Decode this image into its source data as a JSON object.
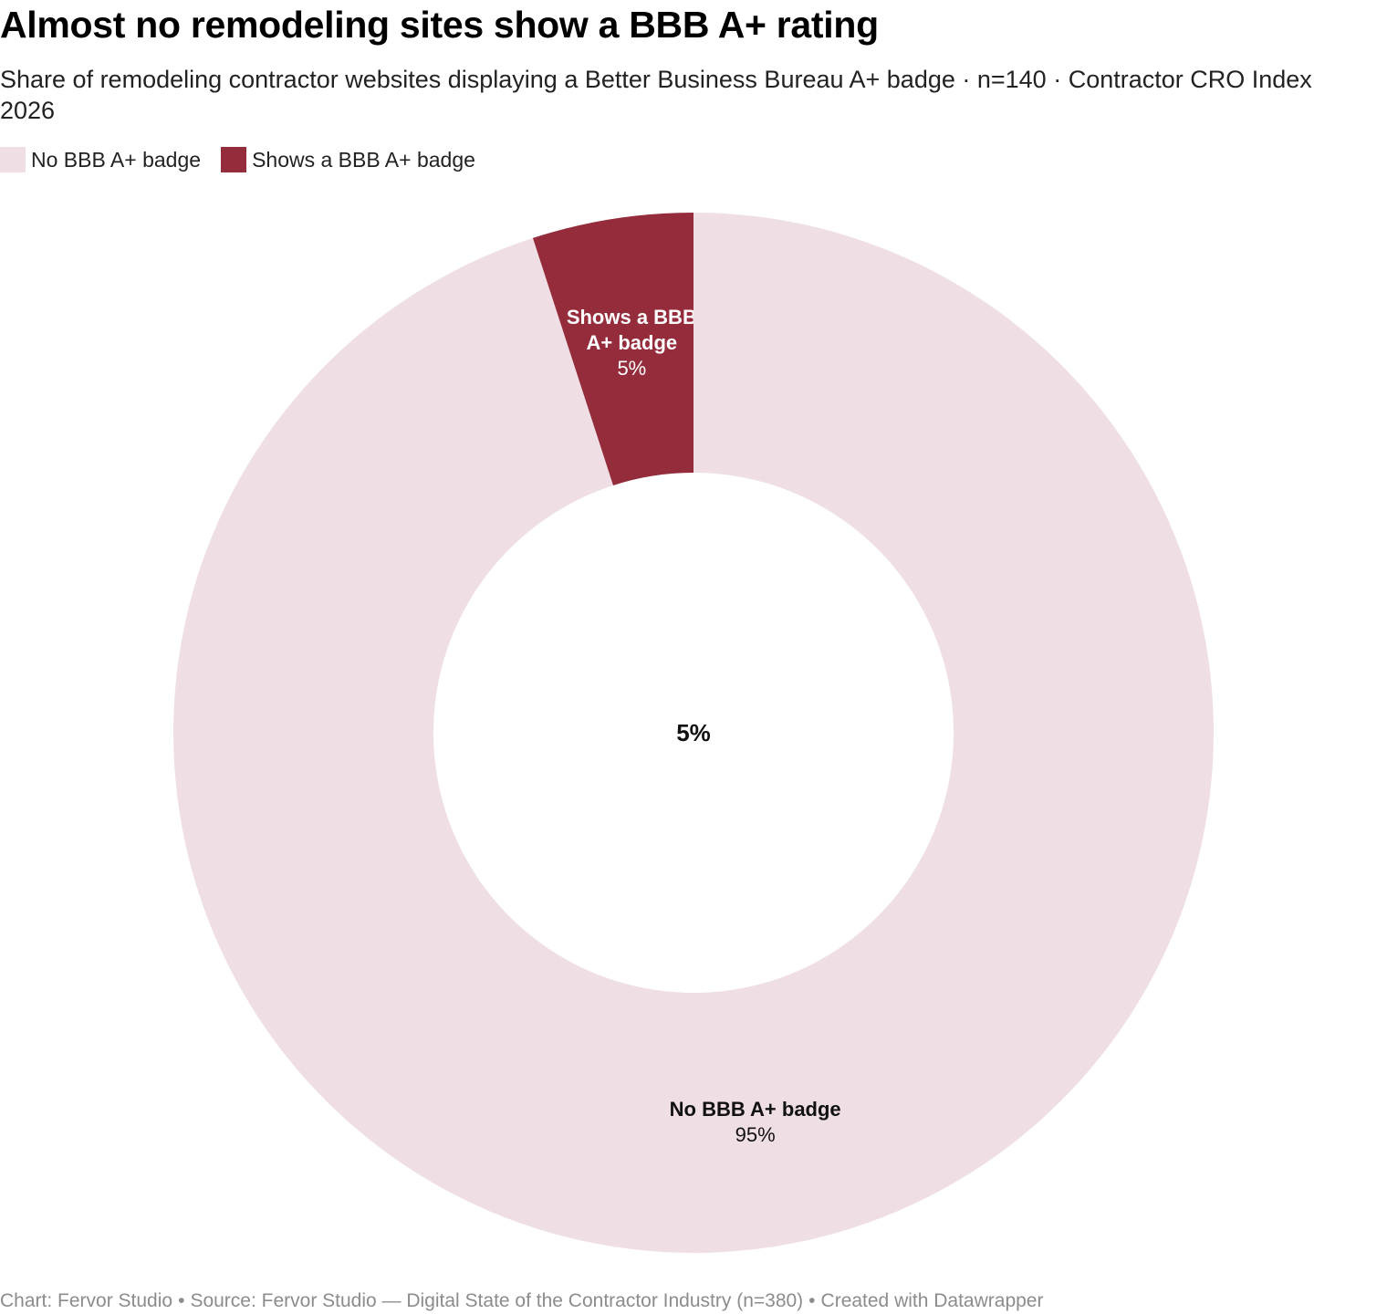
{
  "header": {
    "title": "Almost no remodeling sites show a BBB A+ rating",
    "subtitle": "Share of remodeling contractor websites displaying a Better Business Bureau A+ badge · n=140 · Contractor CRO Index 2026"
  },
  "legend": {
    "items": [
      {
        "label": "No BBB A+ badge",
        "color": "#efdfe5"
      },
      {
        "label": "Shows a BBB A+ badge",
        "color": "#952c3b"
      }
    ]
  },
  "chart_data": {
    "type": "pie",
    "variant": "donut",
    "center_label": "5%",
    "legend_position": "top-left",
    "slices": [
      {
        "label": "Shows a BBB A+ badge",
        "label_lines": [
          "Shows a BBB",
          "A+ badge"
        ],
        "value": 5,
        "value_label": "5%",
        "color": "#952c3b",
        "text_color": "#ffffff"
      },
      {
        "label": "No BBB A+ badge",
        "label_lines": [
          "No BBB A+ badge"
        ],
        "value": 95,
        "value_label": "95%",
        "color": "#efdfe5",
        "text_color": "#111111"
      }
    ]
  },
  "footer": {
    "chart_credit": "Chart: Fervor Studio",
    "source": "Source: Fervor Studio — Digital State of the Contractor Industry (n=380)",
    "created_with": "Created with Datawrapper",
    "separator": "•"
  }
}
